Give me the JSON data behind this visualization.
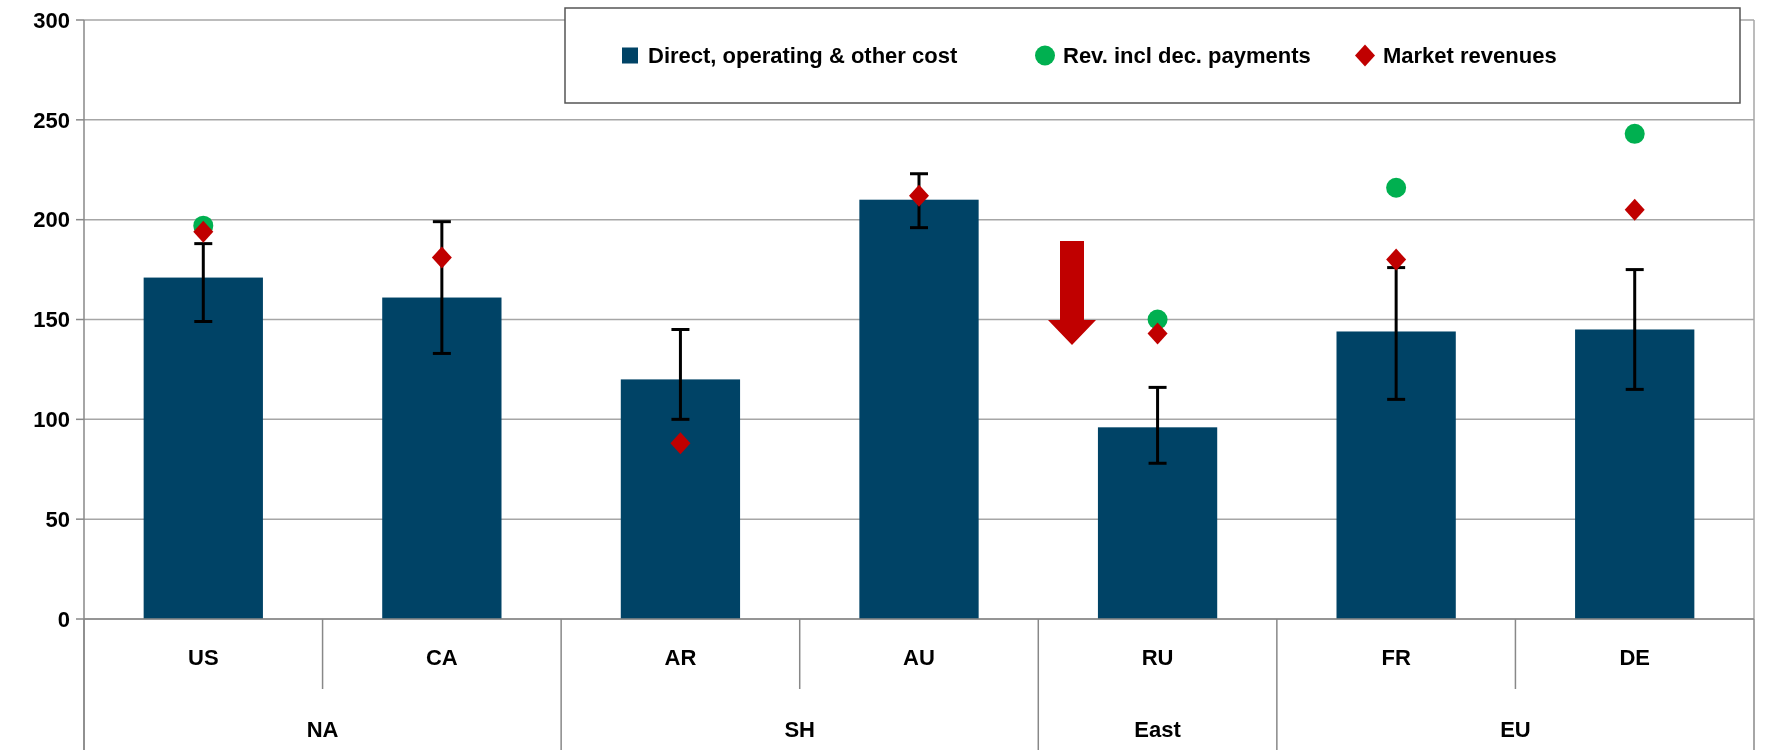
{
  "chart_data": {
    "type": "bar",
    "categories": [
      "US",
      "CA",
      "AR",
      "AU",
      "RU",
      "FR",
      "DE"
    ],
    "series": [
      {
        "name": "Direct, operating  & other cost",
        "color": "#004366",
        "values": [
          171,
          161,
          120,
          210,
          96,
          144,
          145
        ],
        "errors": [
          [
            149,
            188
          ],
          [
            133,
            199
          ],
          [
            100,
            145
          ],
          [
            196,
            223
          ],
          [
            78,
            116
          ],
          [
            110,
            176
          ],
          [
            115,
            175
          ]
        ]
      },
      {
        "type": "scatter",
        "name": "Rev. incl dec. payments",
        "color": "#00b050",
        "marker": "circle",
        "values": [
          197,
          null,
          null,
          null,
          150,
          216,
          243
        ]
      },
      {
        "type": "scatter",
        "name": "Market revenues",
        "color": "#c00000",
        "marker": "diamond",
        "values": [
          194,
          181,
          88,
          212,
          143,
          180,
          205
        ]
      }
    ],
    "ylim": [
      0,
      300
    ],
    "yticks": [
      0,
      50,
      100,
      150,
      200,
      250,
      300
    ],
    "grid": "y",
    "legend": "top right",
    "annotations": [
      "NA",
      "SH",
      "East",
      "EU"
    ]
  }
}
